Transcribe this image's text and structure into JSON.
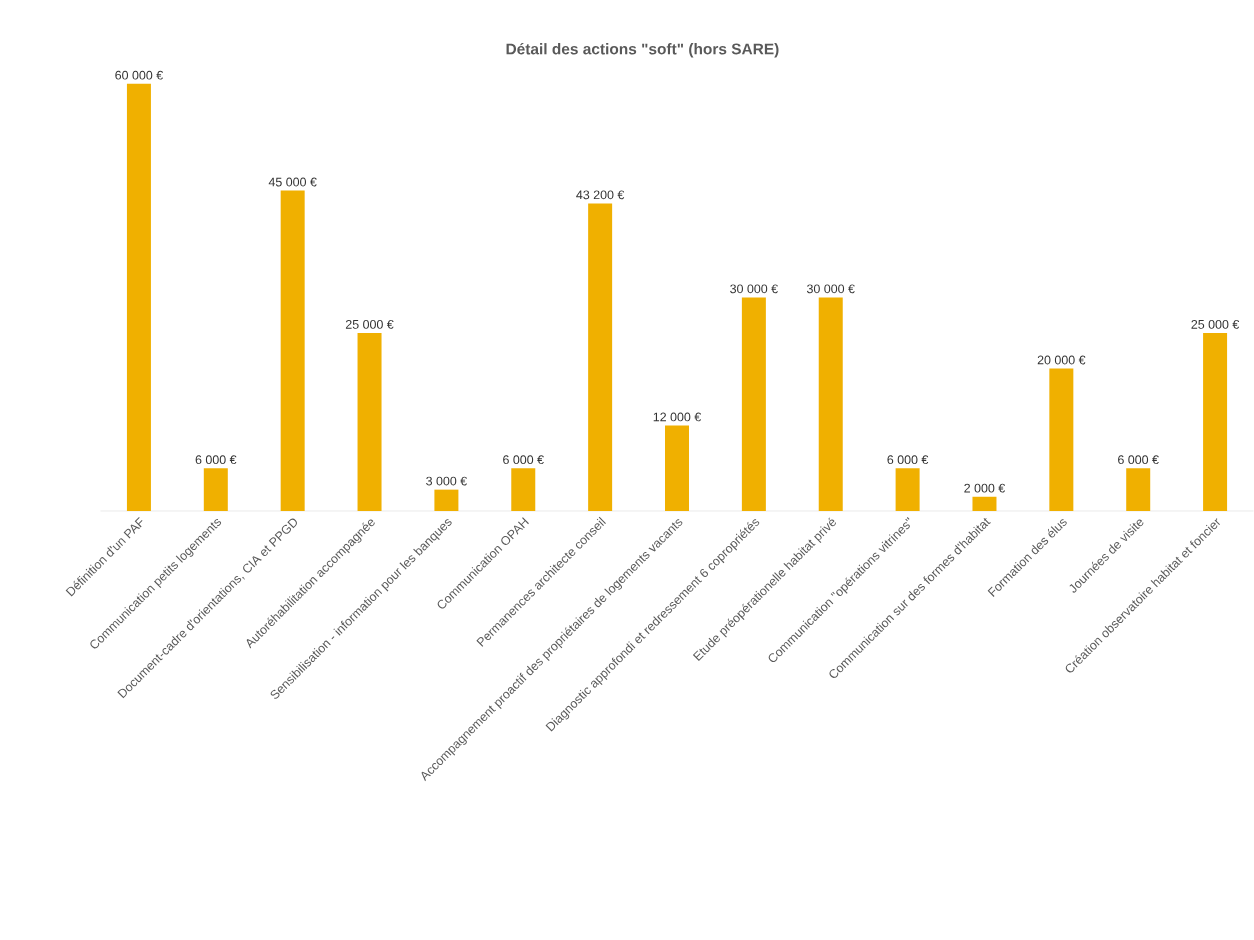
{
  "chart_data": {
    "type": "bar",
    "title": "Détail des actions \"soft\" (hors SARE)",
    "categories": [
      "Définition d'un PAF",
      "Communication petits logements",
      "Document-cadre d'orientations, CIA et PPGD",
      "Autoréhabilitation accompagnée",
      "Sensibilisation - information pour les banques",
      "Communication OPAH",
      "Permanences architecte conseil",
      "Accompagnement proactif des propriétaires de logements vacants",
      "Diagnostic approfondi et redressement 6 copropriétés",
      "Etude préopérationelle habitat privé",
      "Communication \"opérations vitrines\"",
      "Communication sur des formes d'habitat",
      "Formation des élus",
      "Journées de visite",
      "Création observatoire habitat et foncier"
    ],
    "values": [
      60000,
      6000,
      45000,
      25000,
      3000,
      6000,
      43200,
      12000,
      30000,
      30000,
      6000,
      2000,
      20000,
      6000,
      25000
    ],
    "value_labels": [
      "60 000 €",
      "6 000 €",
      "45 000 €",
      "25 000 €",
      "3 000 €",
      "6 000 €",
      "43 200 €",
      "12 000 €",
      "30 000 €",
      "30 000 €",
      "6 000 €",
      "2 000 €",
      "20 000 €",
      "6 000 €",
      "25 000 €"
    ],
    "color": "#f0b000"
  }
}
